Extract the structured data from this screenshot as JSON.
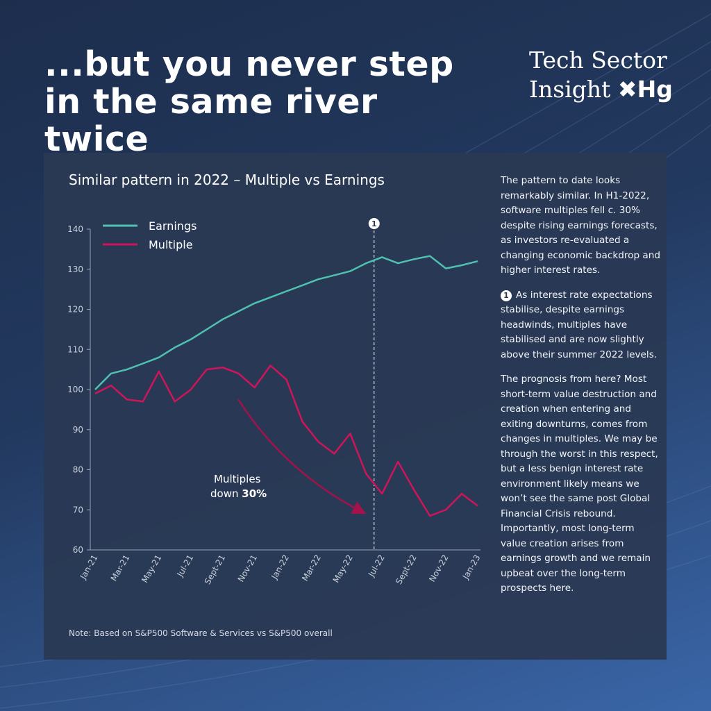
{
  "header": {
    "title": "...but you never step in the same river twice",
    "logo_line1": "Tech  Sector",
    "logo_line2": "Insight",
    "logo_brand": "✖Hg"
  },
  "chart_data": {
    "type": "line",
    "title": "Similar pattern in 2022 – Multiple vs Earnings",
    "categories": [
      "Jan-21",
      null,
      "Mar-21",
      null,
      "May-21",
      null,
      "Jul-21",
      null,
      "Sept-21",
      null,
      "Nov-21",
      null,
      "Jan-22",
      null,
      "Mar-22",
      null,
      "May-22",
      null,
      "Jul-22",
      null,
      "Sept-22",
      null,
      "Nov-22",
      null,
      "Jan-23"
    ],
    "series": [
      {
        "name": "Earnings",
        "color": "#4fc1b0",
        "values": [
          100,
          104,
          105,
          106.5,
          108,
          110.5,
          112.5,
          115,
          117.5,
          119.5,
          121.5,
          123,
          124.5,
          126,
          127.5,
          128.5,
          129.5,
          131.5,
          133,
          131.5,
          132.5,
          133.3,
          130.2,
          131,
          132
        ]
      },
      {
        "name": "Multiple",
        "color": "#d0145a",
        "values": [
          99,
          101,
          97.5,
          97,
          104.5,
          97,
          100,
          105,
          105.5,
          104,
          100.5,
          106,
          102.5,
          92,
          87,
          84,
          89,
          79,
          74,
          82,
          75,
          68.5,
          70,
          74,
          71
        ]
      }
    ],
    "ylim": [
      60,
      140
    ],
    "yticks": [
      60,
      70,
      80,
      90,
      100,
      110,
      120,
      130,
      140
    ],
    "annotations": [
      {
        "label": "1"
      }
    ],
    "arrow_text": [
      "Multiples",
      "down",
      "30%"
    ],
    "note": "Note: Based on S&P500 Software & Services vs S&P500 overall"
  },
  "side_text": {
    "p1": "The pattern to date looks remarkably similar. In H1-2022, software multiples fell c. 30% despite rising earnings forecasts, as investors re-evaluated a changing economic backdrop and higher interest rates.",
    "p2_num": "1",
    "p2": "As interest rate expectations stabilise, despite earnings headwinds, multiples have stabilised and are now slightly above their summer 2022 levels.",
    "p3": "The prognosis from here? Most short-term value destruction and creation when entering and exiting downturns, comes from changes in multiples. We may be through the worst in this respect, but a less benign interest rate environment likely means we won’t see the same post Global Financial Crisis rebound. Importantly, most long-term value creation arises from earnings growth and we remain upbeat over the long-term prospects here."
  }
}
